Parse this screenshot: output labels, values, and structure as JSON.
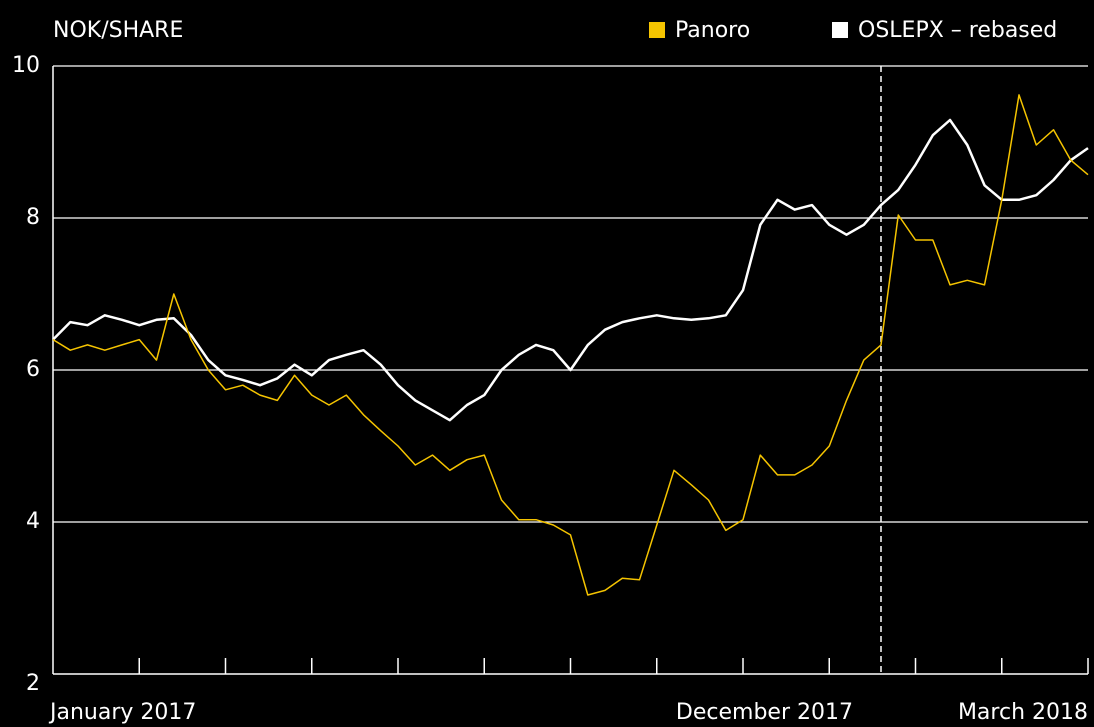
{
  "chart_data": {
    "type": "line",
    "y_label": "NOK/SHARE",
    "categories": [
      "January 2017",
      null,
      null,
      null,
      null,
      null,
      null,
      null,
      null,
      null,
      null,
      null,
      null,
      null,
      null,
      null,
      null,
      null,
      null,
      null,
      null,
      null,
      null,
      null,
      null,
      null,
      null,
      null,
      null,
      null,
      null,
      null,
      null,
      null,
      null,
      null,
      null,
      null,
      null,
      null,
      null,
      null,
      null,
      null,
      null,
      null,
      null,
      null,
      "December 2017",
      null,
      null,
      null,
      null,
      null,
      null,
      null,
      null,
      null,
      null,
      null,
      "March 2018"
    ],
    "series": [
      {
        "name": "Panoro",
        "color": "#f5c400",
        "values": [
          6.4,
          6.26,
          6.33,
          6.26,
          6.33,
          6.4,
          6.13,
          7.0,
          6.4,
          6.0,
          5.74,
          5.8,
          5.67,
          5.6,
          5.93,
          5.67,
          5.54,
          5.67,
          5.41,
          5.2,
          5.0,
          4.75,
          4.88,
          4.68,
          4.82,
          4.88,
          4.29,
          4.03,
          4.03,
          3.96,
          3.83,
          3.04,
          3.1,
          3.26,
          3.24,
          3.96,
          4.68,
          4.49,
          4.29,
          3.89,
          4.03,
          4.88,
          4.62,
          4.62,
          4.75,
          5.0,
          5.6,
          6.13,
          6.33,
          8.04,
          7.71,
          7.71,
          7.12,
          7.18,
          7.12,
          8.24,
          9.62,
          8.96,
          9.16,
          8.76,
          8.57
        ]
      },
      {
        "name": "OSLEPX – rebased",
        "color": "#ffffff",
        "values": [
          6.4,
          6.63,
          6.59,
          6.72,
          6.66,
          6.59,
          6.66,
          6.68,
          6.46,
          6.13,
          5.93,
          5.87,
          5.8,
          5.89,
          6.07,
          5.93,
          6.13,
          6.2,
          6.26,
          6.07,
          5.8,
          5.6,
          5.47,
          5.34,
          5.54,
          5.67,
          6.0,
          6.2,
          6.33,
          6.26,
          6.0,
          6.33,
          6.53,
          6.63,
          6.68,
          6.72,
          6.68,
          6.66,
          6.68,
          6.72,
          7.05,
          7.91,
          8.24,
          8.11,
          8.17,
          7.91,
          7.78,
          7.91,
          8.17,
          8.37,
          8.7,
          9.09,
          9.29,
          8.96,
          8.43,
          8.24,
          8.24,
          8.3,
          8.5,
          8.76,
          8.92
        ]
      }
    ],
    "ylim": [
      2,
      10
    ],
    "yticks": [
      2,
      4,
      6,
      8,
      10
    ],
    "grid": true,
    "vline": "December 2017",
    "legend": "top-right"
  }
}
